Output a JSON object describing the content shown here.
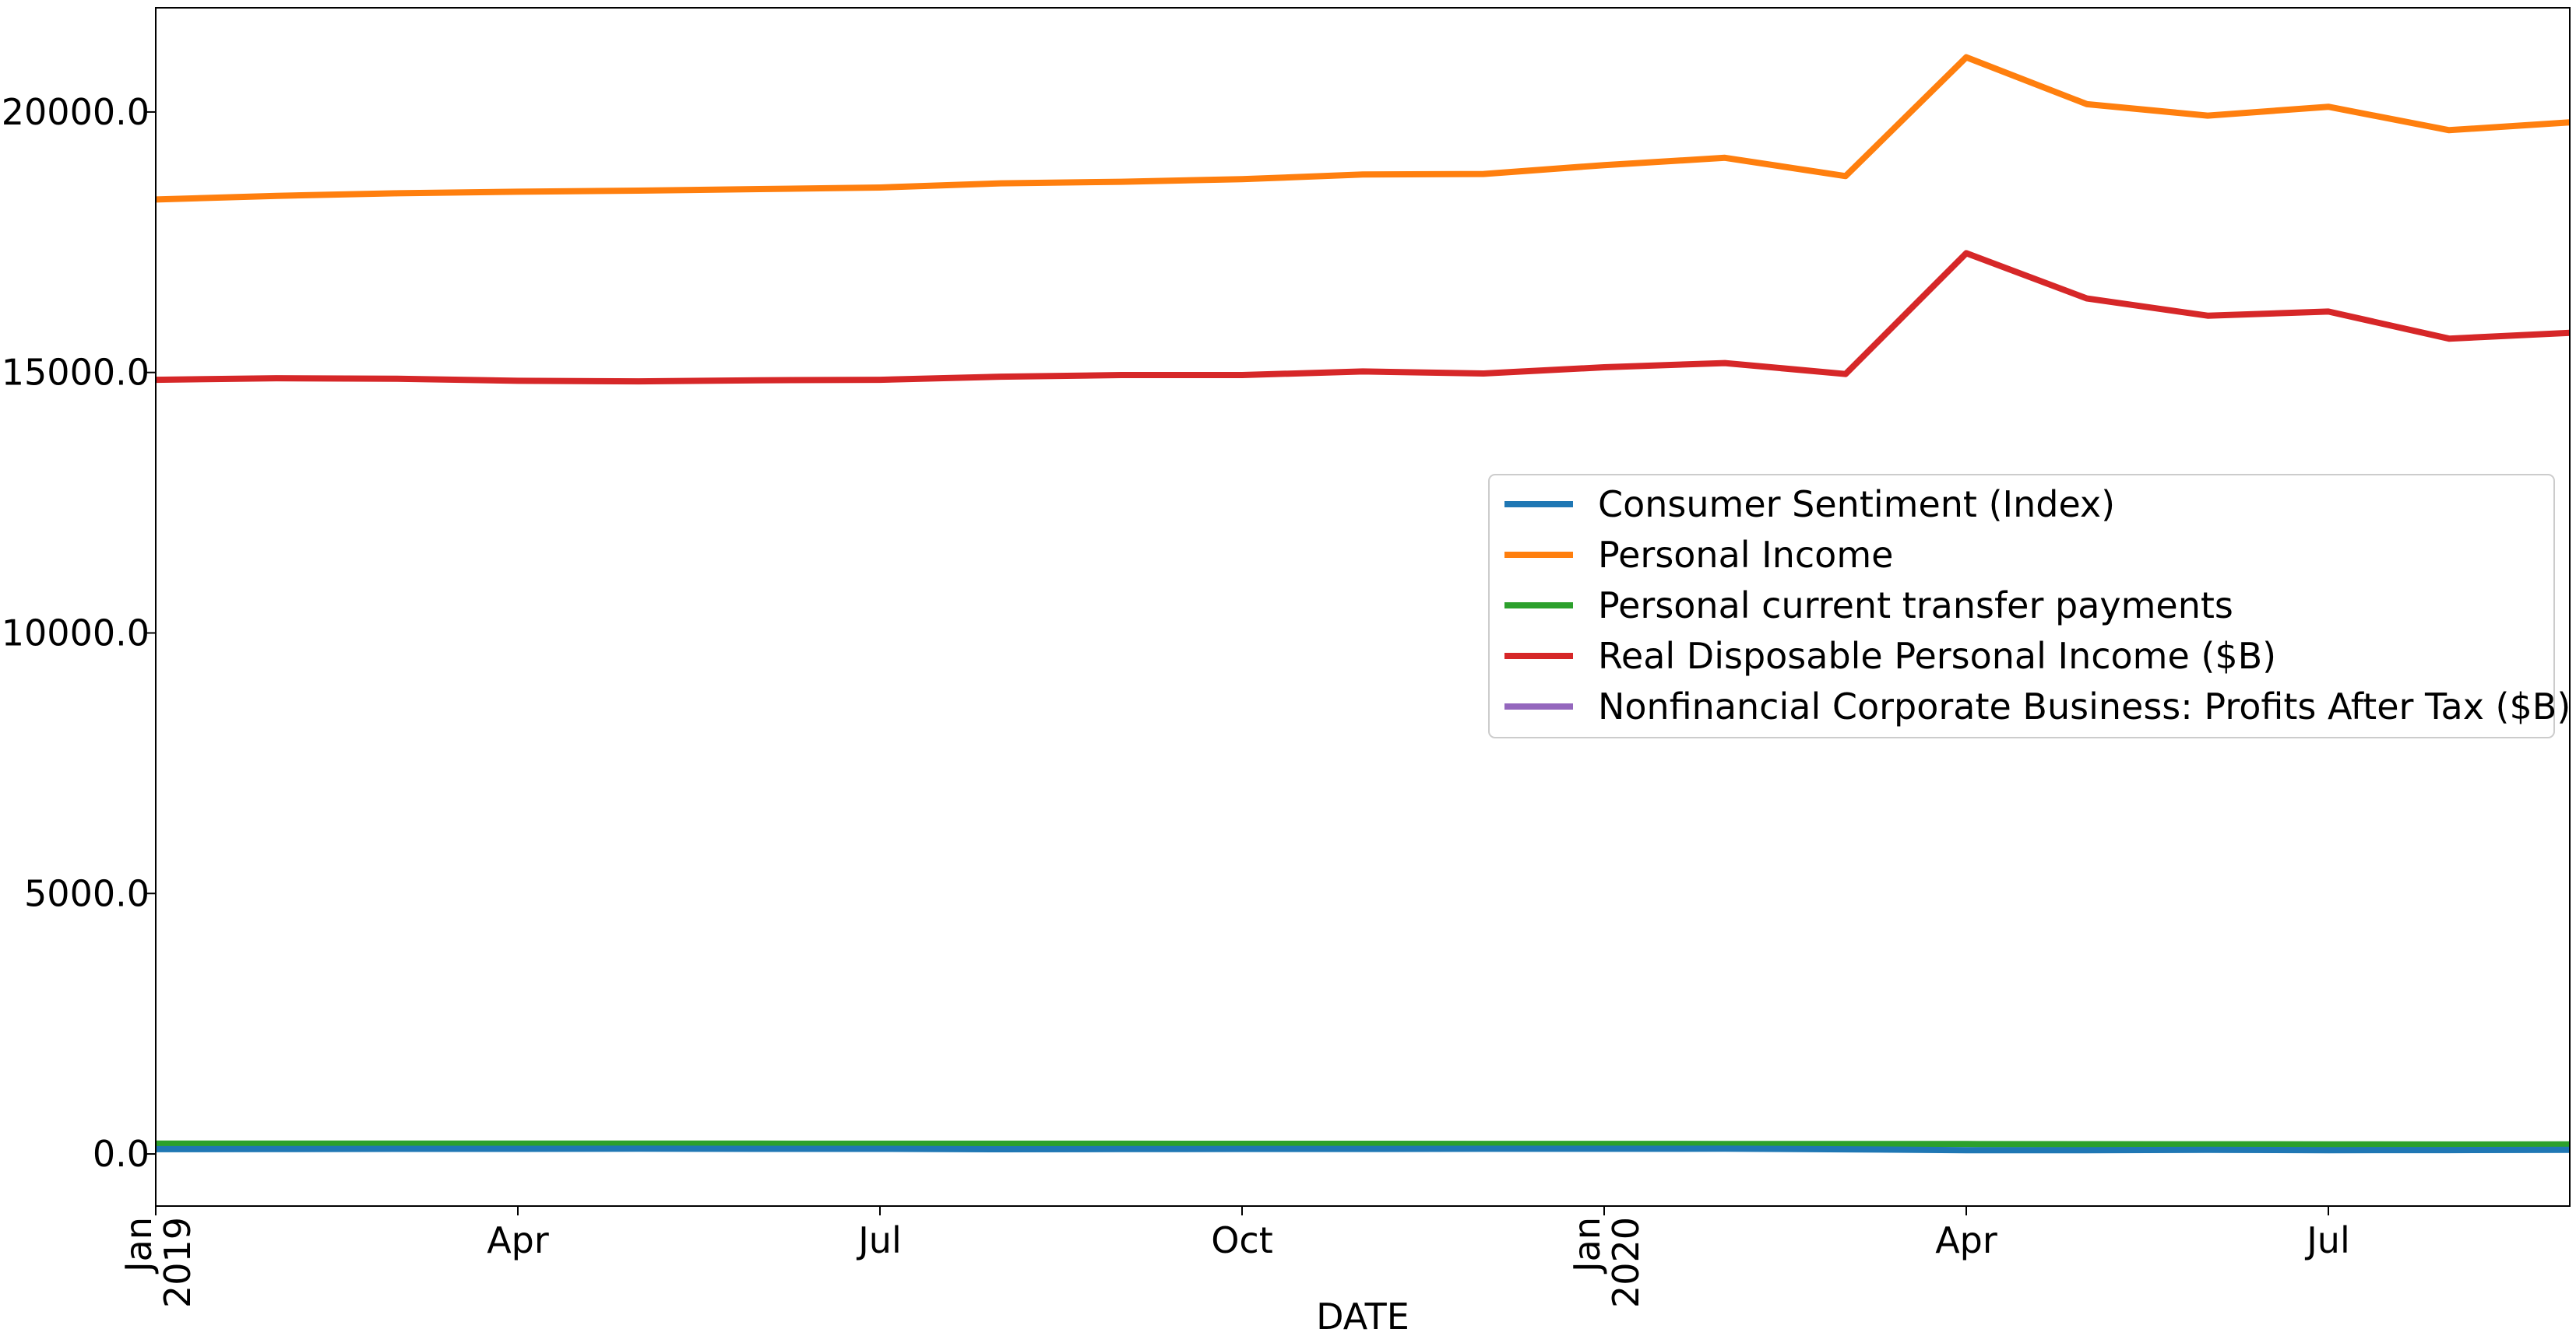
{
  "chart_data": {
    "type": "line",
    "xlabel": "DATE",
    "ylabel": "",
    "ylim": [
      -1000,
      22000
    ],
    "yticks": [
      0,
      5000,
      10000,
      15000,
      20000
    ],
    "ytick_labels": [
      "0.0",
      "5000.0",
      "10000.0",
      "15000.0",
      "20000.0"
    ],
    "x_dates": [
      "2019-01",
      "2019-02",
      "2019-03",
      "2019-04",
      "2019-05",
      "2019-06",
      "2019-07",
      "2019-08",
      "2019-09",
      "2019-10",
      "2019-11",
      "2019-12",
      "2020-01",
      "2020-02",
      "2020-03",
      "2020-04",
      "2020-05",
      "2020-06",
      "2020-07",
      "2020-08",
      "2020-09"
    ],
    "x_ticks": [
      {
        "date": "2019-01",
        "label": "Jan",
        "sublabel": "2019"
      },
      {
        "date": "2019-04",
        "label": "Apr",
        "sublabel": ""
      },
      {
        "date": "2019-07",
        "label": "Jul",
        "sublabel": ""
      },
      {
        "date": "2019-10",
        "label": "Oct",
        "sublabel": ""
      },
      {
        "date": "2020-01",
        "label": "Jan",
        "sublabel": "2020"
      },
      {
        "date": "2020-04",
        "label": "Apr",
        "sublabel": ""
      },
      {
        "date": "2020-07",
        "label": "Jul",
        "sublabel": ""
      }
    ],
    "legend_position": "center-right",
    "series": [
      {
        "name": "Consumer Sentiment (Index)",
        "color": "#1f77b4",
        "values": [
          91.2,
          93.8,
          98.4,
          97.2,
          100.0,
          98.2,
          98.4,
          89.8,
          93.2,
          95.5,
          96.8,
          99.3,
          99.8,
          101.0,
          89.1,
          71.8,
          72.3,
          78.1,
          72.5,
          74.1,
          80.4
        ]
      },
      {
        "name": "Personal Income",
        "color": "#ff7f0e",
        "values": [
          18320,
          18390,
          18440,
          18470,
          18490,
          18520,
          18550,
          18630,
          18660,
          18710,
          18800,
          18810,
          18980,
          19120,
          18770,
          21050,
          20150,
          19930,
          20100,
          19650,
          19800
        ]
      },
      {
        "name": "Personal current transfer payments",
        "color": "#2ca02c",
        "values": [
          200,
          200,
          200,
          200,
          200,
          198,
          197,
          196,
          196,
          195,
          195,
          194,
          193,
          192,
          192,
          190,
          188,
          186,
          184,
          182,
          184
        ]
      },
      {
        "name": "Real Disposable Personal Income ($B)",
        "color": "#d62728",
        "values": [
          14860,
          14890,
          14880,
          14840,
          14830,
          14850,
          14860,
          14920,
          14950,
          14950,
          15020,
          14980,
          15100,
          15180,
          14970,
          17290,
          16420,
          16090,
          16170,
          15650,
          15760
        ]
      },
      {
        "name": "Nonfinancial Corporate Business: Profits After Tax ($B)",
        "color": "#9467bd",
        "values": []
      }
    ]
  }
}
